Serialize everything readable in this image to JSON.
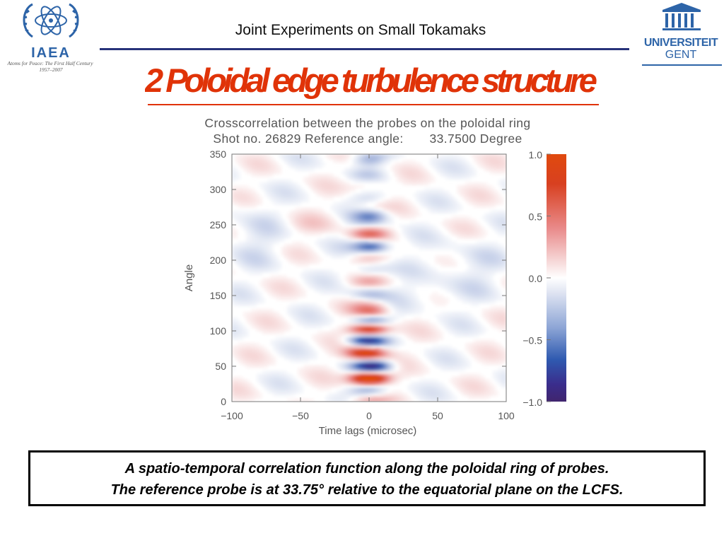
{
  "header": {
    "title": "Joint Experiments on Small Tokamaks",
    "left_logo": {
      "name": "IAEA",
      "tagline_1": "Atoms for Peace: The First Half Century",
      "tagline_2": "1957–2007",
      "icon": "iaea-atom-emblem"
    },
    "right_logo": {
      "line_1": "UNIVERSITEIT",
      "line_2": "GENT",
      "icon": "ugent-building-icon"
    }
  },
  "slide_title": "2 Poloidal edge turbulence structure",
  "caption": {
    "line_1": "A spatio-temporal correlation function along the poloidal ring of probes.",
    "line_2": "The reference probe is at 33.75° relative to the equatorial plane on the LCFS."
  },
  "colors": {
    "accent_red": "#e03308",
    "header_rule": "#27327a",
    "logo_blue": "#2d64a8"
  },
  "chart_data": {
    "type": "heatmap",
    "title": "Crosscorrelation between the probes on the poloidal ring",
    "subtitle": "Shot no. 26829 Reference angle:       33.7500 Degree",
    "xlabel": "Time lags (microsec)",
    "ylabel": "Angle",
    "xlim": [
      -100,
      100
    ],
    "ylim": [
      0,
      350
    ],
    "xticks": [
      "−100",
      "−50",
      "0",
      "50",
      "100"
    ],
    "xtick_values": [
      -100,
      -50,
      0,
      50,
      100
    ],
    "yticks": [
      "0",
      "50",
      "100",
      "150",
      "200",
      "250",
      "300",
      "350"
    ],
    "ytick_values": [
      0,
      50,
      100,
      150,
      200,
      250,
      300,
      350
    ],
    "colorbar": {
      "range": [
        -1.0,
        1.0
      ],
      "ticks": [
        "1.0",
        "0.5",
        "0.0",
        "−0.5",
        "−1.0"
      ],
      "tick_values": [
        1.0,
        0.5,
        0.0,
        -0.5,
        -1.0
      ],
      "colors_high_to_low": [
        "#e04a0e",
        "#cc3e4d",
        "#f2c6c6",
        "#ffffff",
        "#c4cde6",
        "#3964b5",
        "#3a2d8c",
        "#40256e"
      ]
    },
    "features": [
      {
        "angle": 33.75,
        "lag": 0,
        "value": 1.0
      },
      {
        "angle": 70,
        "lag": -3,
        "value": 0.7
      },
      {
        "angle": 103,
        "lag": 0,
        "value": 0.7
      },
      {
        "angle": 125,
        "lag": 1,
        "value": 0.55
      },
      {
        "angle": 50,
        "lag": 3,
        "value": -0.55
      },
      {
        "angle": 88,
        "lag": -2,
        "value": -0.5
      },
      {
        "angle": 115,
        "lag": 1,
        "value": -0.45
      },
      {
        "angle": 220,
        "lag": 2,
        "value": -0.45
      },
      {
        "angle": 342,
        "lag": 0,
        "value": -0.4
      },
      {
        "angle": 238,
        "lag": 0,
        "value": 0.35
      },
      {
        "angle": 265,
        "lag": 1,
        "value": -0.4
      }
    ]
  }
}
